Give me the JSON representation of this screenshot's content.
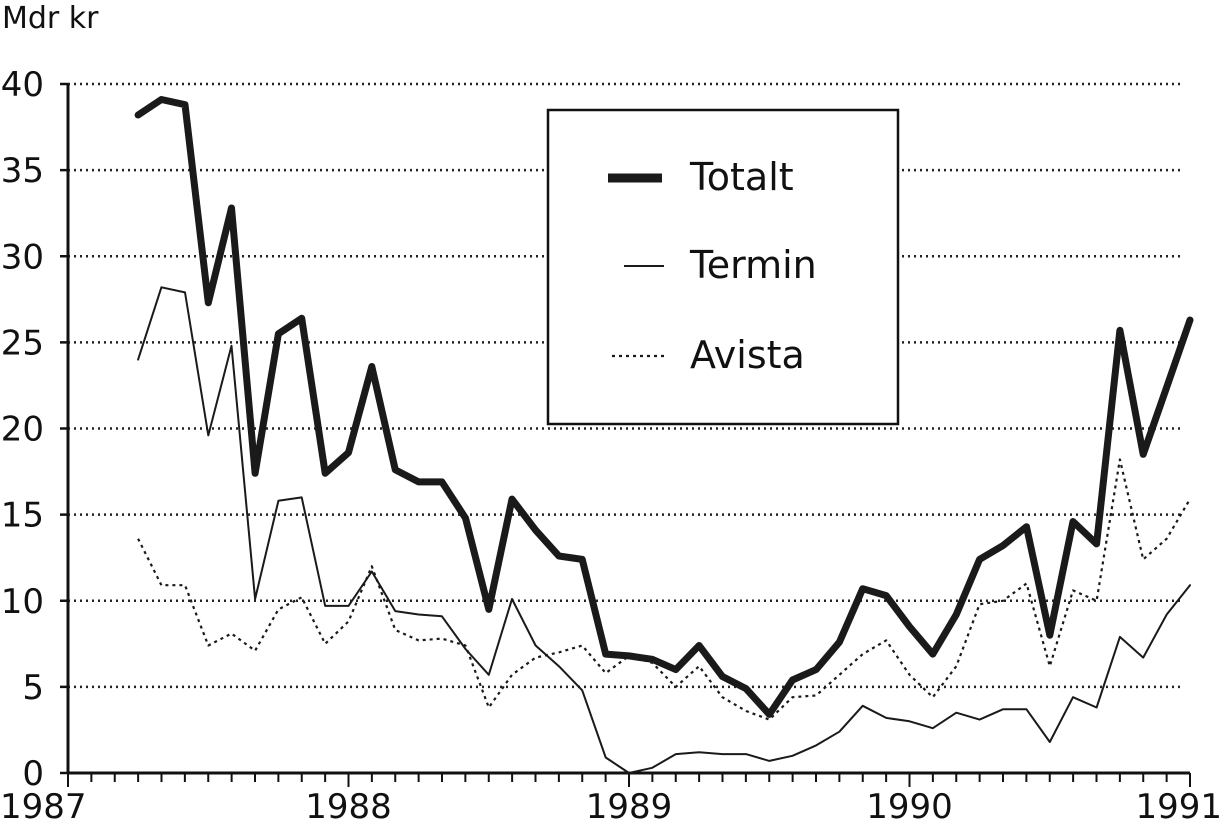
{
  "chart_data": {
    "type": "line",
    "title": "",
    "ylabel": "Mdr kr",
    "xlabel": "",
    "ylim": [
      0,
      40
    ],
    "xlim": [
      1987,
      1991
    ],
    "yticks": [
      0,
      5,
      10,
      15,
      20,
      25,
      30,
      35,
      40
    ],
    "xticks": [
      "1987",
      "1988",
      "1989",
      "1990",
      "1991"
    ],
    "grid": "horizontal dotted",
    "legend_position": "top-center",
    "series": [
      {
        "name": "Totalt",
        "style": "thick",
        "color": "#1a1a1a",
        "x": [
          1987.25,
          1987.333,
          1987.417,
          1987.5,
          1987.583,
          1987.667,
          1987.75,
          1987.833,
          1987.917,
          1988.0,
          1988.083,
          1988.167,
          1988.25,
          1988.333,
          1988.417,
          1988.5,
          1988.583,
          1988.667,
          1988.75,
          1988.833,
          1988.917,
          1989.0,
          1989.083,
          1989.167,
          1989.25,
          1989.333,
          1989.417,
          1989.5,
          1989.583,
          1989.667,
          1989.75,
          1989.833,
          1989.917,
          1990.0,
          1990.083,
          1990.167,
          1990.25,
          1990.333,
          1990.417,
          1990.5,
          1990.583,
          1990.667,
          1990.75,
          1990.833,
          1990.917,
          1991.0
        ],
        "values": [
          38.2,
          39.1,
          38.8,
          27.3,
          32.8,
          17.4,
          25.5,
          26.4,
          17.4,
          18.6,
          23.6,
          17.6,
          16.9,
          16.9,
          14.8,
          9.5,
          15.9,
          14.1,
          12.6,
          12.4,
          6.9,
          6.8,
          6.6,
          6.0,
          7.4,
          5.6,
          4.9,
          3.4,
          5.4,
          6.0,
          7.6,
          10.7,
          10.3,
          8.5,
          6.9,
          9.2,
          12.4,
          13.2,
          14.3,
          8.0,
          14.6,
          13.3,
          25.7,
          18.5,
          22.4,
          26.3
        ]
      },
      {
        "name": "Termin",
        "style": "thin",
        "color": "#1a1a1a",
        "x": [
          1987.25,
          1987.333,
          1987.417,
          1987.5,
          1987.583,
          1987.667,
          1987.75,
          1987.833,
          1987.917,
          1988.0,
          1988.083,
          1988.167,
          1988.25,
          1988.333,
          1988.417,
          1988.5,
          1988.583,
          1988.667,
          1988.75,
          1988.833,
          1988.917,
          1989.0,
          1989.083,
          1989.167,
          1989.25,
          1989.333,
          1989.417,
          1989.5,
          1989.583,
          1989.667,
          1989.75,
          1989.833,
          1989.917,
          1990.0,
          1990.083,
          1990.167,
          1990.25,
          1990.333,
          1990.417,
          1990.5,
          1990.583,
          1990.667,
          1990.75,
          1990.833,
          1990.917,
          1991.0
        ],
        "values": [
          24.0,
          28.2,
          27.9,
          19.6,
          24.8,
          10.1,
          15.8,
          16.0,
          9.7,
          9.7,
          11.7,
          9.4,
          9.2,
          9.1,
          7.2,
          5.7,
          10.1,
          7.4,
          6.2,
          4.8,
          0.9,
          0.0,
          0.3,
          1.1,
          1.2,
          1.1,
          1.1,
          0.7,
          1.0,
          1.6,
          2.4,
          3.9,
          3.2,
          3.0,
          2.6,
          3.5,
          3.1,
          3.7,
          3.7,
          1.8,
          4.4,
          3.8,
          7.9,
          6.7,
          9.2,
          10.9
        ]
      },
      {
        "name": "Avista",
        "style": "dotted",
        "color": "#1a1a1a",
        "x": [
          1987.25,
          1987.333,
          1987.417,
          1987.5,
          1987.583,
          1987.667,
          1987.75,
          1987.833,
          1987.917,
          1988.0,
          1988.083,
          1988.167,
          1988.25,
          1988.333,
          1988.417,
          1988.5,
          1988.583,
          1988.667,
          1988.75,
          1988.833,
          1988.917,
          1989.0,
          1989.083,
          1989.167,
          1989.25,
          1989.333,
          1989.417,
          1989.5,
          1989.583,
          1989.667,
          1989.75,
          1989.833,
          1989.917,
          1990.0,
          1990.083,
          1990.167,
          1990.25,
          1990.333,
          1990.417,
          1990.5,
          1990.583,
          1990.667,
          1990.75,
          1990.833,
          1990.917,
          1991.0
        ],
        "values": [
          13.6,
          10.9,
          10.9,
          7.4,
          8.1,
          7.1,
          9.5,
          10.2,
          7.5,
          8.8,
          12.0,
          8.3,
          7.7,
          7.8,
          7.4,
          3.8,
          5.7,
          6.7,
          7.0,
          7.4,
          5.8,
          6.8,
          6.4,
          5.0,
          6.2,
          4.4,
          3.6,
          3.1,
          4.4,
          4.5,
          5.7,
          6.9,
          7.7,
          5.7,
          4.4,
          6.2,
          9.8,
          10.0,
          11.0,
          6.2,
          10.6,
          10.0,
          18.2,
          12.4,
          13.6,
          15.9
        ]
      }
    ]
  }
}
